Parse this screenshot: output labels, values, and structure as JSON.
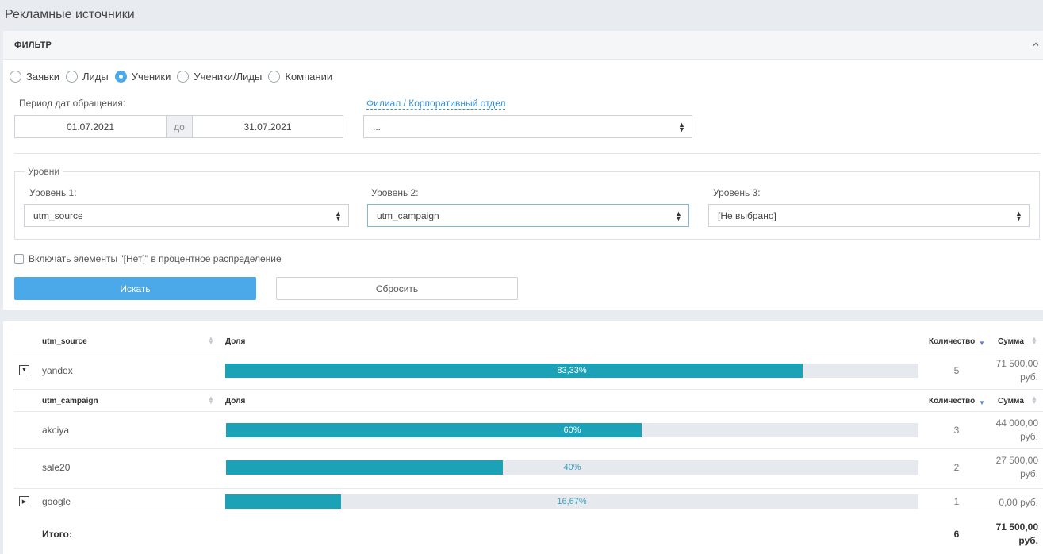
{
  "page": {
    "title": "Рекламные источники"
  },
  "filter": {
    "header": "ФИЛЬТР",
    "radios": [
      {
        "label": "Заявки",
        "checked": false
      },
      {
        "label": "Лиды",
        "checked": false
      },
      {
        "label": "Ученики",
        "checked": true
      },
      {
        "label": "Ученики/Лиды",
        "checked": false
      },
      {
        "label": "Компании",
        "checked": false
      }
    ],
    "period_label": "Период дат обращения:",
    "date_from": "01.07.2021",
    "date_sep": "до",
    "date_to": "31.07.2021",
    "branch_label": "Филиал / Корпоративный отдел",
    "branch_value": "...",
    "levels_legend": "Уровни",
    "level1_label": "Уровень 1:",
    "level1_value": "utm_source",
    "level2_label": "Уровень 2:",
    "level2_value": "utm_campaign",
    "level3_label": "Уровень 3:",
    "level3_value": "[Не выбрано]",
    "include_none_label": "Включать элементы \"[Нет]\" в процентное распределение",
    "search_button": "Искать",
    "reset_button": "Сбросить"
  },
  "table": {
    "headers": {
      "level": "utm_source",
      "share": "Доля",
      "count": "Количество",
      "sum": "Сумма"
    },
    "sub_headers": {
      "level": "utm_campaign",
      "share": "Доля",
      "count": "Количество",
      "sum": "Сумма"
    },
    "rows": [
      {
        "name": "yandex",
        "share_label": "83,33%",
        "share": 83.33,
        "count": "5",
        "sum_line1": "71 500,00",
        "sum_line2": "руб.",
        "expanded": true
      },
      {
        "name": "google",
        "share_label": "16,67%",
        "share": 16.67,
        "count": "1",
        "sum_line1": "0,00 руб.",
        "sum_line2": "",
        "expanded": false
      }
    ],
    "sub_rows": [
      {
        "name": "akciya",
        "share_label": "60%",
        "share": 60,
        "count": "3",
        "sum_line1": "44 000,00",
        "sum_line2": "руб."
      },
      {
        "name": "sale20",
        "share_label": "40%",
        "share": 40,
        "count": "2",
        "sum_line1": "27 500,00",
        "sum_line2": "руб."
      }
    ],
    "total": {
      "label": "Итого:",
      "count": "6",
      "sum_line1": "71 500,00",
      "sum_line2": "руб."
    }
  },
  "colors": {
    "accent": "#4ba9e9",
    "bar": "#1ba2b7",
    "bar_bg": "#e6e9ed"
  }
}
